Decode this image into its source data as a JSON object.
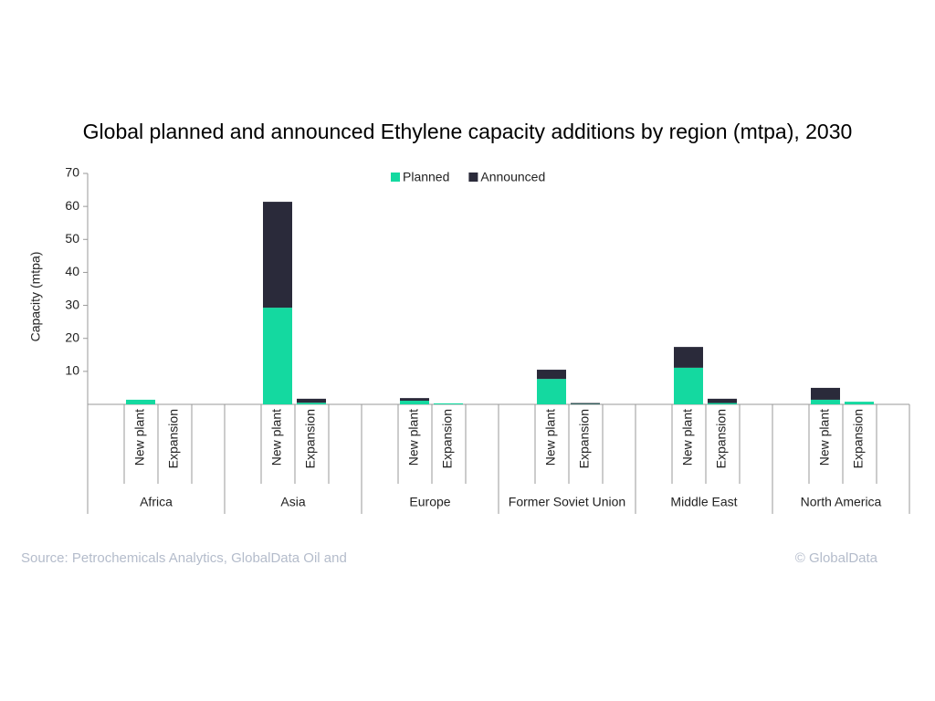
{
  "chart_data": {
    "type": "bar",
    "stacked": true,
    "title": "Global planned and announced Ethylene capacity additions by region (mtpa), 2030",
    "y_label": "Capacity (mtpa)",
    "groups": [
      "Africa",
      "Asia",
      "Europe",
      "Former Soviet Union",
      "Middle East",
      "North America"
    ],
    "categories": [
      "New plant",
      "Expansion",
      "New plant",
      "Expansion",
      "New plant",
      "Expansion",
      "New plant",
      "Expansion",
      "New plant",
      "Expansion",
      "New plant",
      "Expansion"
    ],
    "series": [
      {
        "name": "Planned",
        "color": "#14d9a0",
        "values": [
          1.4,
          0,
          29.3,
          0.5,
          1.1,
          0.3,
          7.7,
          0.1,
          11.1,
          0.4,
          1.4,
          0.8
        ]
      },
      {
        "name": "Announced",
        "color": "#2a2a3a",
        "values": [
          0,
          0,
          32.1,
          1.2,
          0.8,
          0,
          2.8,
          0.3,
          6.3,
          1.3,
          3.6,
          0
        ]
      }
    ],
    "ylim": [
      0,
      70
    ],
    "yticks": [
      10,
      20,
      30,
      40,
      50,
      60,
      70
    ],
    "legend": "top",
    "source": "Source: Petrochemicals Analytics, GlobalData Oil and",
    "copyright": "© GlobalData"
  }
}
